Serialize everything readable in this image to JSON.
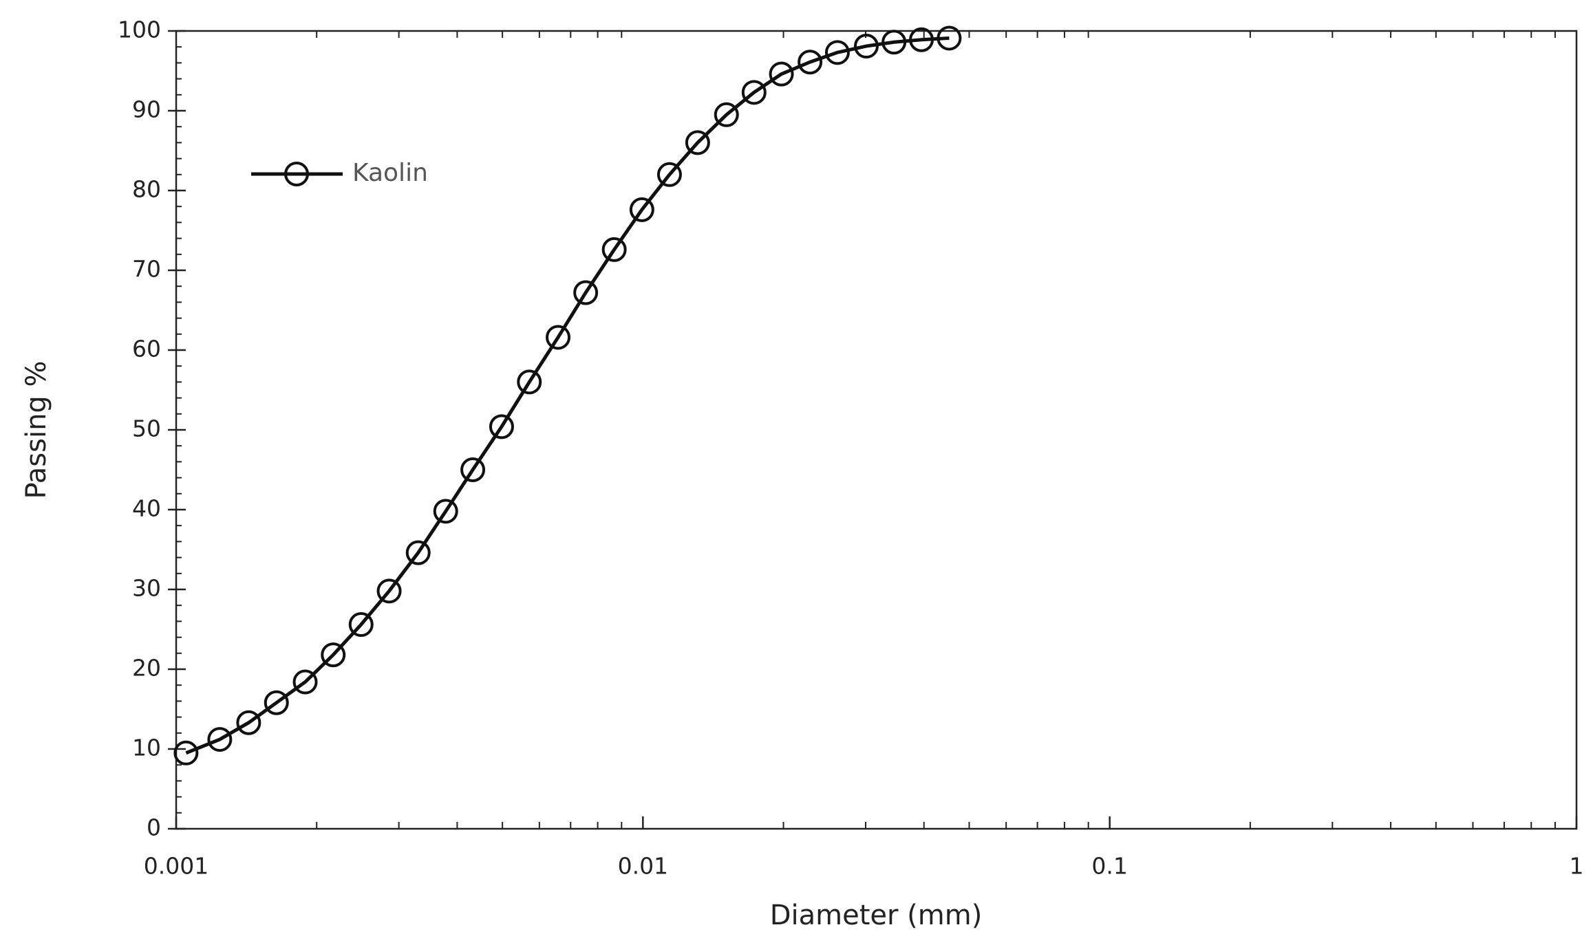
{
  "chart_data": {
    "type": "line",
    "x_label": "Diameter (mm)",
    "y_label": "Passing %",
    "xscale": "log",
    "xlim": [
      0.001,
      1
    ],
    "xticks": [
      0.001,
      0.01,
      0.1,
      1
    ],
    "ylim": [
      0,
      100
    ],
    "yticks": [
      0,
      10,
      20,
      30,
      40,
      50,
      60,
      70,
      80,
      90,
      100
    ],
    "legend_loc": "upper left",
    "x": [
      0.00105,
      0.00124,
      0.00143,
      0.00164,
      0.00189,
      0.00217,
      0.00249,
      0.00286,
      0.0033,
      0.00378,
      0.00432,
      0.00498,
      0.00571,
      0.00658,
      0.00754,
      0.00868,
      0.00995,
      0.0114,
      0.0131,
      0.0151,
      0.0173,
      0.0198,
      0.0228,
      0.0261,
      0.0301,
      0.0345,
      0.0395,
      0.0453
    ],
    "series": [
      {
        "name": "Kaolin",
        "color": "#111111",
        "marker": "circle",
        "values": [
          9.5,
          11.2,
          13.3,
          15.8,
          18.4,
          21.8,
          25.6,
          29.8,
          34.6,
          39.8,
          45,
          50.4,
          56,
          61.6,
          67.2,
          72.6,
          77.6,
          82,
          86,
          89.5,
          92.3,
          94.6,
          96.1,
          97.3,
          98.1,
          98.6,
          98.9,
          99.1
        ]
      }
    ]
  }
}
